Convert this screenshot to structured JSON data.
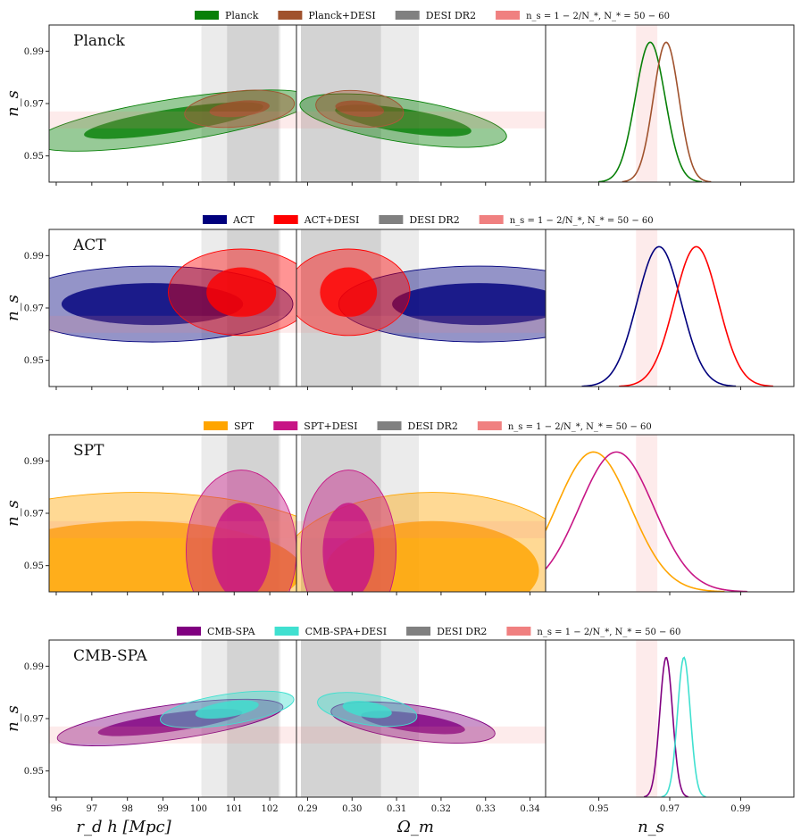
{
  "chart_data": {
    "type": "contour",
    "shared": {
      "xaxes": [
        {
          "label": "r_d h [Mpc]",
          "range": [
            95.8,
            102.75
          ],
          "ticks": [
            96,
            97,
            98,
            99,
            100,
            101,
            102
          ]
        },
        {
          "label": "Ω_m",
          "range": [
            0.2875,
            0.3435
          ],
          "ticks": [
            0.29,
            0.3,
            0.31,
            0.32,
            0.33,
            0.34
          ],
          "tick_labels": [
            "0.29",
            "0.30",
            "0.31",
            "0.32",
            "0.33",
            "0.34"
          ]
        },
        {
          "label": "n_s",
          "range": [
            0.935,
            1.005
          ],
          "ticks": [
            0.95,
            0.97,
            0.99
          ],
          "tick_labels": [
            "0.95",
            "0.97",
            "0.99"
          ]
        }
      ],
      "ylabel": "n_s",
      "ylim": [
        0.94,
        1.0
      ],
      "yticks": [
        0.95,
        0.97,
        0.99
      ],
      "ytick_labels": [
        "0.95",
        "0.97",
        "0.99"
      ],
      "desi_bands": {
        "rdh": {
          "inner": [
            100.8,
            102.25
          ],
          "outer": [
            100.08,
            102.3
          ]
        },
        "om": {
          "inner": [
            0.2885,
            0.3065
          ],
          "outer": [
            0.2885,
            0.315
          ]
        }
      },
      "ns_band": {
        "range": [
          0.9605,
          0.967
        ],
        "ns_1d_range": [
          0.9605,
          0.9665
        ]
      },
      "colors": {
        "desi_inner": "#d3d3d3",
        "desi_outer": "#ebebeb",
        "ns_band": "#f08080"
      }
    },
    "rows": [
      {
        "name": "Planck",
        "legend": [
          "Planck",
          "Planck+DESI",
          "DESI DR2",
          "n_s = 1 − 2/N_*, N_* = 50 − 60"
        ],
        "colors": {
          "a": "#088008",
          "b": "#a0522d"
        },
        "contours": {
          "a_rdh": {
            "cx": 99.3,
            "cy": 0.9635,
            "w1": 2.55,
            "h1": 0.0045,
            "w2": 3.95,
            "h2": 0.0082,
            "angle": 9
          },
          "b_rdh": {
            "cx": 101.15,
            "cy": 0.968,
            "w1": 0.85,
            "h1": 0.003,
            "w2": 1.55,
            "h2": 0.0068,
            "angle": 6
          },
          "a_om": {
            "cx": 0.3115,
            "cy": 0.9635,
            "w1": 0.0155,
            "h1": 0.0045,
            "w2": 0.0235,
            "h2": 0.0082,
            "angle": -9
          },
          "b_om": {
            "cx": 0.3017,
            "cy": 0.968,
            "w1": 0.0055,
            "h1": 0.003,
            "w2": 0.0099,
            "h2": 0.0068,
            "angle": -6
          }
        },
        "posterior_1d": {
          "a": {
            "mean": 0.9645,
            "sigma": 0.0042
          },
          "b": {
            "mean": 0.969,
            "sigma": 0.0036
          }
        }
      },
      {
        "name": "ACT",
        "legend": [
          "ACT",
          "ACT+DESI",
          "DESI DR2",
          "n_s = 1 − 2/N_*, N_* = 50 − 60"
        ],
        "colors": {
          "a": "#00007d",
          "b": "#ff0000"
        },
        "contours": {
          "a_rdh": {
            "cx": 98.7,
            "cy": 0.9715,
            "w1": 2.55,
            "h1": 0.008,
            "w2": 3.95,
            "h2": 0.0145,
            "angle": 0
          },
          "b_rdh": {
            "cx": 101.2,
            "cy": 0.976,
            "w1": 0.98,
            "h1": 0.0095,
            "w2": 2.05,
            "h2": 0.0165,
            "angle": 0
          },
          "a_om": {
            "cx": 0.3285,
            "cy": 0.9715,
            "w1": 0.0195,
            "h1": 0.008,
            "w2": 0.0315,
            "h2": 0.0145,
            "angle": 0
          },
          "b_om": {
            "cx": 0.2992,
            "cy": 0.976,
            "w1": 0.0064,
            "h1": 0.0095,
            "w2": 0.0138,
            "h2": 0.0165,
            "angle": 0
          }
        },
        "posterior_1d": {
          "a": {
            "mean": 0.967,
            "sigma": 0.0062
          },
          "b": {
            "mean": 0.9775,
            "sigma": 0.0062
          }
        }
      },
      {
        "name": "SPT",
        "legend": [
          "SPT",
          "SPT+DESI",
          "DESI DR2",
          "n_s = 1 − 2/N_*, N_* = 50 − 60"
        ],
        "colors": {
          "a": "#ffa500",
          "b": "#c71585"
        },
        "contours": {
          "a_rdh": {
            "cx": 98.3,
            "cy": 0.948,
            "w1": 4.6,
            "h1": 0.019,
            "w2": 6.2,
            "h2": 0.03,
            "angle": 0
          },
          "b_rdh": {
            "cx": 101.2,
            "cy": 0.9555,
            "w1": 0.82,
            "h1": 0.0185,
            "w2": 1.55,
            "h2": 0.031,
            "angle": 0
          },
          "a_om": {
            "cx": 0.318,
            "cy": 0.948,
            "w1": 0.024,
            "h1": 0.019,
            "w2": 0.034,
            "h2": 0.03,
            "angle": 0
          },
          "b_om": {
            "cx": 0.2992,
            "cy": 0.9555,
            "w1": 0.0058,
            "h1": 0.0185,
            "w2": 0.0107,
            "h2": 0.031,
            "angle": 0
          }
        },
        "posterior_1d": {
          "a": {
            "mean": 0.9485,
            "sigma": 0.0105
          },
          "b": {
            "mean": 0.955,
            "sigma": 0.0105
          }
        }
      },
      {
        "name": "CMB-SPA",
        "legend": [
          "CMB-SPA",
          "CMB-SPA+DESI",
          "DESI DR2",
          "n_s = 1 − 2/N_*, N_* = 50 − 60"
        ],
        "colors": {
          "a": "#800080",
          "b": "#40e0d0"
        },
        "contours": {
          "a_rdh": {
            "cx": 99.2,
            "cy": 0.9685,
            "w1": 2.05,
            "h1": 0.0035,
            "w2": 3.2,
            "h2": 0.0066,
            "angle": 8
          },
          "b_rdh": {
            "cx": 100.8,
            "cy": 0.9735,
            "w1": 0.9,
            "h1": 0.003,
            "w2": 1.9,
            "h2": 0.0058,
            "angle": 9
          },
          "a_om": {
            "cx": 0.3137,
            "cy": 0.9685,
            "w1": 0.0118,
            "h1": 0.0035,
            "w2": 0.0186,
            "h2": 0.0066,
            "angle": -8
          },
          "b_om": {
            "cx": 0.3034,
            "cy": 0.9735,
            "w1": 0.0056,
            "h1": 0.003,
            "w2": 0.0113,
            "h2": 0.0058,
            "angle": -9
          }
        },
        "posterior_1d": {
          "a": {
            "mean": 0.969,
            "sigma": 0.0018
          },
          "b": {
            "mean": 0.974,
            "sigma": 0.0018
          }
        }
      }
    ]
  }
}
